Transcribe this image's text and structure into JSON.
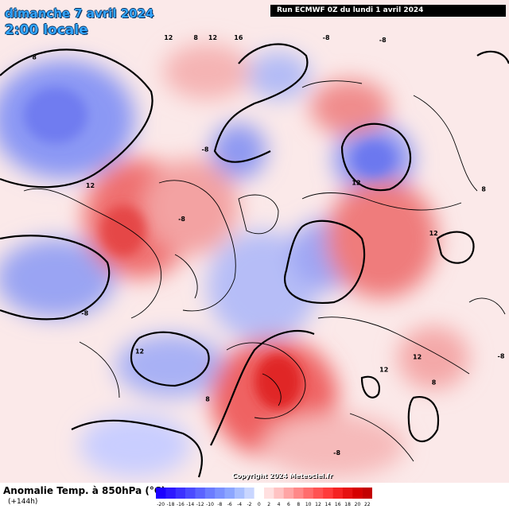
{
  "header": {
    "date": "dimanche 7 avril 2024",
    "time": "2:00 locale",
    "run": "Run ECMWF 0Z du lundi 1 avril 2024"
  },
  "footer": {
    "variable": "Anomalie Temp. à 850hPa (°C)",
    "lead": "(+144h)",
    "copyright": "Copyright 2024 Meteociel.fr"
  },
  "legend": {
    "ticks": [
      "-20",
      "-18",
      "-16",
      "-14",
      "-12",
      "-10",
      "-8",
      "-6",
      "-4",
      "-2",
      "0",
      "2",
      "4",
      "6",
      "8",
      "10",
      "12",
      "14",
      "16",
      "18",
      "20",
      "22"
    ],
    "colors": [
      "#1c00ff",
      "#2d18ff",
      "#3c31ff",
      "#4b4aff",
      "#5b63ff",
      "#6b7cff",
      "#7b91ff",
      "#8ca6ff",
      "#a9bfff",
      "#c9d6ff",
      "#ffffff",
      "#ffe0e0",
      "#ffc3c3",
      "#ffa5a5",
      "#ff8888",
      "#ff6c6c",
      "#ff5252",
      "#ff3a3a",
      "#f52222",
      "#e61010",
      "#d60000",
      "#c30000"
    ]
  },
  "map_labels": [
    {
      "text": "12",
      "lon": -125,
      "lat": 60
    },
    {
      "text": "12",
      "lon": -115,
      "lat": 57
    },
    {
      "text": "8",
      "lon": -118,
      "lat": 52
    },
    {
      "text": "12",
      "lon": -45,
      "lat": 70
    },
    {
      "text": "12",
      "lon": -75,
      "lat": 60
    },
    {
      "text": "8",
      "lon": -65,
      "lat": 50
    },
    {
      "text": "-8",
      "lon": -100,
      "lat": 35
    },
    {
      "text": "-8",
      "lon": -20,
      "lat": 48
    },
    {
      "text": "-8",
      "lon": -5,
      "lat": 47
    },
    {
      "text": "-8",
      "lon": -150,
      "lat": 52
    },
    {
      "text": "12",
      "lon": 20,
      "lat": 40
    },
    {
      "text": "16",
      "lon": 15,
      "lat": 42
    },
    {
      "text": "8",
      "lon": 25,
      "lat": 45
    },
    {
      "text": "12",
      "lon": 30,
      "lat": 42
    },
    {
      "text": "12",
      "lon": 80,
      "lat": 58
    },
    {
      "text": "-8",
      "lon": 80,
      "lat": 75
    },
    {
      "text": "-8",
      "lon": 120,
      "lat": 57
    },
    {
      "text": "12",
      "lon": 140,
      "lat": 62
    },
    {
      "text": "8",
      "lon": 170,
      "lat": 62
    },
    {
      "text": "8",
      "lon": 60,
      "lat": 38
    },
    {
      "text": "-8",
      "lon": 40,
      "lat": 70
    }
  ]
}
